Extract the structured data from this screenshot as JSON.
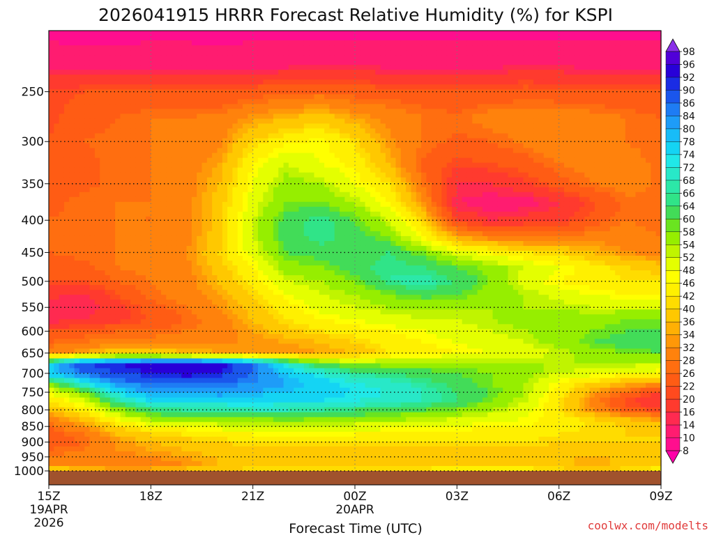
{
  "chart_data": {
    "type": "heatmap",
    "title": "2026041915 HRRR Forecast Relative Humidity (%) for KSPI",
    "xlabel": "Forecast Time (UTC)",
    "ylabel": "",
    "credit": "coolwx.com/modelts",
    "x_ticks": [
      {
        "hour": 0,
        "label": "15Z",
        "sub": [
          "19APR",
          "2026"
        ]
      },
      {
        "hour": 3,
        "label": "18Z",
        "sub": []
      },
      {
        "hour": 6,
        "label": "21Z",
        "sub": []
      },
      {
        "hour": 9,
        "label": "00Z",
        "sub": [
          "20APR"
        ]
      },
      {
        "hour": 12,
        "label": "03Z",
        "sub": []
      },
      {
        "hour": 15,
        "label": "06Z",
        "sub": []
      },
      {
        "hour": 18,
        "label": "09Z",
        "sub": []
      }
    ],
    "xlim": [
      0,
      18
    ],
    "y_ticks": [
      250,
      300,
      350,
      400,
      450,
      500,
      550,
      600,
      650,
      700,
      750,
      800,
      850,
      900,
      950,
      1000
    ],
    "ylim": [
      200,
      1000
    ],
    "y_scale": "log-pressure",
    "grid": true,
    "ground_color": "#a0522d",
    "colorbar": {
      "levels": [
        8,
        10,
        14,
        16,
        20,
        22,
        26,
        28,
        32,
        34,
        36,
        40,
        42,
        46,
        48,
        52,
        54,
        58,
        60,
        64,
        66,
        68,
        72,
        74,
        78,
        80,
        84,
        86,
        90,
        92,
        96,
        98
      ],
      "colors": [
        "#ff00a8",
        "#ff0e8e",
        "#ff1c70",
        "#ff2a50",
        "#ff3a2e",
        "#ff4a1e",
        "#ff5c14",
        "#ff6e10",
        "#ff820c",
        "#ff9808",
        "#ffb004",
        "#ffc800",
        "#ffdc00",
        "#fff000",
        "#ffff00",
        "#e4ff00",
        "#c0f400",
        "#96ee00",
        "#6ae420",
        "#42dc58",
        "#30e488",
        "#2ce8a8",
        "#28e8c8",
        "#20e8e8",
        "#14d4f4",
        "#18bcf8",
        "#1e9cf8",
        "#1e7cf4",
        "#1a56ec",
        "#1a2ce4",
        "#2800d8",
        "#5000d8",
        "#8a30e8"
      ]
    },
    "series_hours": [
      0,
      1,
      2,
      3,
      4,
      5,
      6,
      7,
      8,
      9,
      10,
      11,
      12,
      13,
      14,
      15,
      16,
      17,
      18
    ],
    "pressure_levels": [
      200,
      225,
      250,
      275,
      300,
      325,
      350,
      375,
      400,
      425,
      450,
      475,
      500,
      525,
      550,
      575,
      600,
      625,
      650,
      675,
      700,
      725,
      750,
      775,
      800,
      825,
      850,
      875,
      900,
      925,
      950,
      975,
      1000
    ],
    "values": [
      [
        9,
        9,
        9,
        9,
        9,
        9,
        9,
        9,
        9,
        9,
        9,
        9,
        9,
        9,
        9,
        9,
        9,
        9,
        9
      ],
      [
        12,
        11,
        11,
        12,
        12,
        11,
        12,
        12,
        13,
        13,
        12,
        12,
        12,
        12,
        13,
        13,
        12,
        12,
        12
      ],
      [
        21,
        22,
        22,
        22,
        23,
        22,
        24,
        25,
        26,
        24,
        24,
        23,
        22,
        23,
        24,
        23,
        22,
        22,
        22
      ],
      [
        21,
        24,
        26,
        28,
        28,
        29,
        33,
        36,
        38,
        34,
        31,
        28,
        27,
        30,
        30,
        31,
        30,
        28,
        26
      ],
      [
        22,
        26,
        27,
        28,
        29,
        31,
        40,
        45,
        47,
        41,
        33,
        28,
        25,
        26,
        29,
        32,
        31,
        28,
        26
      ],
      [
        22,
        25,
        27,
        28,
        30,
        34,
        46,
        52,
        48,
        45,
        36,
        25,
        21,
        22,
        24,
        28,
        30,
        30,
        27
      ],
      [
        24,
        25,
        27,
        28,
        30,
        36,
        48,
        56,
        54,
        48,
        42,
        28,
        16,
        16,
        19,
        24,
        28,
        30,
        27
      ],
      [
        25,
        27,
        28,
        28,
        30,
        38,
        50,
        58,
        58,
        54,
        46,
        32,
        14,
        12,
        12,
        16,
        21,
        27,
        27
      ],
      [
        26,
        27,
        28,
        28,
        30,
        38,
        52,
        62,
        66,
        60,
        52,
        40,
        20,
        16,
        18,
        18,
        24,
        28,
        26
      ],
      [
        26,
        27,
        28,
        29,
        31,
        38,
        52,
        62,
        66,
        62,
        58,
        46,
        34,
        30,
        28,
        28,
        30,
        30,
        28
      ],
      [
        26,
        27,
        28,
        29,
        31,
        40,
        50,
        60,
        62,
        62,
        64,
        58,
        50,
        46,
        42,
        40,
        36,
        32,
        30
      ],
      [
        24,
        25,
        28,
        29,
        31,
        38,
        46,
        56,
        58,
        62,
        66,
        64,
        60,
        56,
        52,
        48,
        44,
        40,
        38
      ],
      [
        22,
        22,
        26,
        28,
        30,
        36,
        44,
        52,
        54,
        58,
        66,
        68,
        64,
        58,
        50,
        46,
        44,
        42,
        42
      ],
      [
        17,
        15,
        22,
        27,
        30,
        34,
        40,
        48,
        52,
        54,
        58,
        62,
        60,
        56,
        54,
        50,
        48,
        46,
        46
      ],
      [
        14,
        14,
        18,
        24,
        28,
        32,
        38,
        44,
        50,
        52,
        54,
        54,
        54,
        54,
        54,
        54,
        52,
        52,
        52
      ],
      [
        14,
        16,
        18,
        22,
        26,
        30,
        36,
        42,
        46,
        48,
        50,
        52,
        52,
        54,
        56,
        56,
        56,
        58,
        58
      ],
      [
        22,
        24,
        26,
        26,
        28,
        30,
        34,
        38,
        42,
        44,
        46,
        48,
        50,
        52,
        54,
        56,
        58,
        60,
        60
      ],
      [
        26,
        28,
        30,
        30,
        31,
        32,
        32,
        34,
        36,
        40,
        44,
        46,
        48,
        50,
        52,
        56,
        60,
        62,
        62
      ],
      [
        30,
        34,
        40,
        40,
        36,
        34,
        32,
        32,
        34,
        36,
        42,
        44,
        46,
        48,
        50,
        52,
        56,
        58,
        60
      ],
      [
        74,
        90,
        92,
        94,
        96,
        94,
        86,
        70,
        60,
        56,
        56,
        56,
        56,
        56,
        54,
        54,
        54,
        54,
        52
      ],
      [
        78,
        86,
        90,
        92,
        94,
        92,
        86,
        78,
        72,
        66,
        64,
        62,
        60,
        58,
        56,
        52,
        50,
        48,
        46
      ],
      [
        58,
        72,
        84,
        86,
        86,
        86,
        84,
        80,
        76,
        72,
        70,
        66,
        62,
        58,
        54,
        46,
        40,
        36,
        34
      ],
      [
        48,
        58,
        74,
        82,
        80,
        82,
        80,
        78,
        76,
        74,
        72,
        68,
        64,
        60,
        54,
        44,
        34,
        26,
        20
      ],
      [
        42,
        50,
        66,
        74,
        74,
        76,
        76,
        74,
        74,
        72,
        70,
        68,
        64,
        58,
        52,
        42,
        30,
        20,
        16
      ],
      [
        36,
        44,
        56,
        64,
        66,
        66,
        68,
        68,
        66,
        64,
        62,
        60,
        58,
        54,
        50,
        42,
        32,
        24,
        20
      ],
      [
        30,
        38,
        48,
        56,
        58,
        58,
        58,
        60,
        58,
        58,
        56,
        54,
        52,
        50,
        48,
        44,
        40,
        36,
        32
      ],
      [
        26,
        32,
        40,
        46,
        48,
        50,
        52,
        52,
        52,
        50,
        50,
        48,
        48,
        46,
        46,
        44,
        42,
        40,
        38
      ],
      [
        24,
        28,
        36,
        40,
        42,
        44,
        46,
        46,
        46,
        46,
        44,
        44,
        44,
        44,
        44,
        42,
        40,
        40,
        40
      ],
      [
        22,
        26,
        32,
        36,
        38,
        40,
        42,
        42,
        42,
        42,
        42,
        42,
        42,
        42,
        42,
        40,
        40,
        40,
        40
      ],
      [
        26,
        28,
        32,
        34,
        36,
        38,
        38,
        38,
        38,
        38,
        38,
        38,
        38,
        38,
        38,
        38,
        38,
        38,
        38
      ],
      [
        28,
        30,
        30,
        32,
        34,
        36,
        36,
        36,
        36,
        36,
        36,
        36,
        36,
        36,
        36,
        36,
        36,
        36,
        36
      ],
      [
        32,
        30,
        28,
        30,
        32,
        36,
        38,
        38,
        38,
        38,
        38,
        38,
        40,
        40,
        40,
        38,
        34,
        38,
        40
      ],
      [
        40,
        38,
        36,
        36,
        38,
        40,
        42,
        42,
        42,
        42,
        42,
        44,
        44,
        44,
        44,
        42,
        40,
        42,
        44
      ]
    ]
  }
}
